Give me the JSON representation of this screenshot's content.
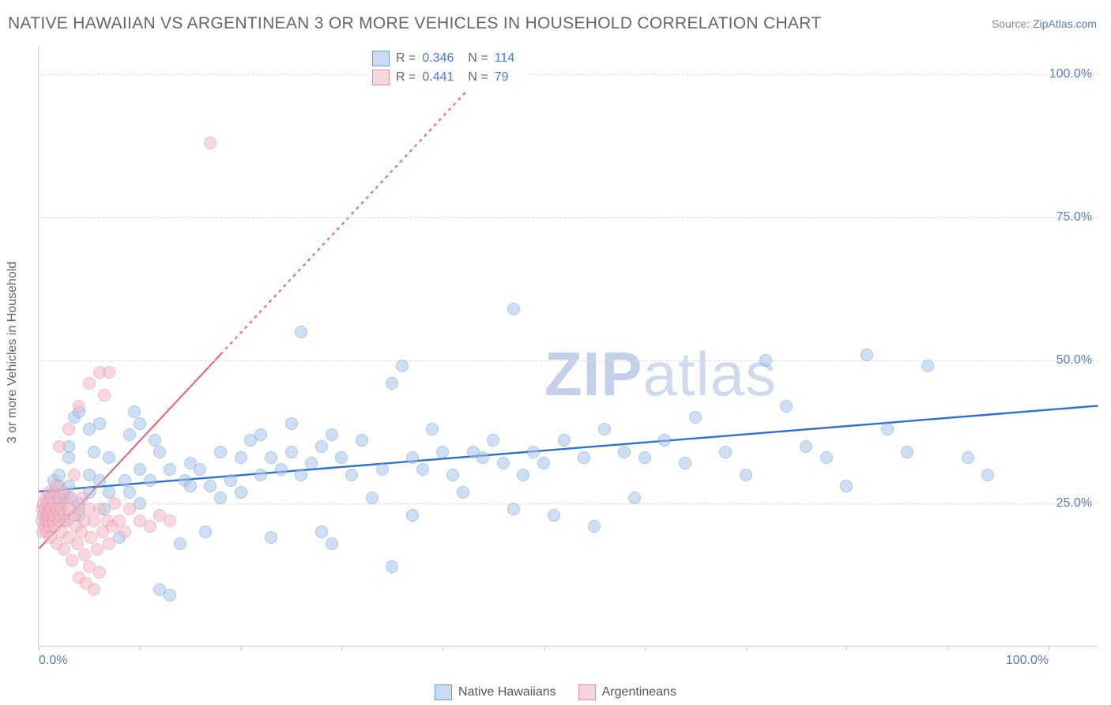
{
  "title": "NATIVE HAWAIIAN VS ARGENTINEAN 3 OR MORE VEHICLES IN HOUSEHOLD CORRELATION CHART",
  "source_label": "Source: ",
  "source_link": "ZipAtlas.com",
  "ylabel": "3 or more Vehicles in Household",
  "watermark_zip": "ZIP",
  "watermark_atlas": "atlas",
  "chart": {
    "type": "scatter",
    "xlim": [
      0,
      105
    ],
    "ylim": [
      0,
      105
    ],
    "y_gridlines": [
      25,
      50,
      75,
      100
    ],
    "y_tick_labels": [
      "25.0%",
      "50.0%",
      "75.0%",
      "100.0%"
    ],
    "x_ticks": [
      0,
      10,
      20,
      30,
      40,
      50,
      60,
      70,
      80,
      90,
      100
    ],
    "x_tick_labels_shown": {
      "0": "0.0%",
      "100": "100.0%"
    },
    "background_color": "#ffffff",
    "grid_color": "#dddddd",
    "axis_color": "#cccccc",
    "point_radius": 8,
    "point_border_width": 1.4,
    "series": [
      {
        "name": "Native Hawaiians",
        "color_fill": "#a9c5ea",
        "color_stroke": "#6b9bd8",
        "fill_opacity": 0.55,
        "R": "0.346",
        "N": "114",
        "trend": {
          "x1": 0,
          "y1": 27,
          "x2": 105,
          "y2": 42,
          "color": "#2f6fd0",
          "width": 2.4,
          "dash": "none"
        },
        "points": [
          [
            1,
            24
          ],
          [
            1,
            26
          ],
          [
            1.5,
            29
          ],
          [
            1.5,
            27
          ],
          [
            2,
            30
          ],
          [
            2,
            25
          ],
          [
            2,
            28
          ],
          [
            2.5,
            22
          ],
          [
            2.5,
            26
          ],
          [
            3,
            33
          ],
          [
            3,
            35
          ],
          [
            3,
            28
          ],
          [
            3,
            26
          ],
          [
            3.5,
            40
          ],
          [
            4,
            41
          ],
          [
            4,
            23
          ],
          [
            4,
            25
          ],
          [
            5,
            27
          ],
          [
            5,
            38
          ],
          [
            5,
            30
          ],
          [
            5.5,
            34
          ],
          [
            6,
            29
          ],
          [
            6,
            39
          ],
          [
            6.5,
            24
          ],
          [
            7,
            27
          ],
          [
            7,
            33
          ],
          [
            8,
            19
          ],
          [
            8.5,
            29
          ],
          [
            9,
            37
          ],
          [
            9,
            27
          ],
          [
            9.5,
            41
          ],
          [
            10,
            39
          ],
          [
            10,
            31
          ],
          [
            10,
            25
          ],
          [
            11,
            29
          ],
          [
            11.5,
            36
          ],
          [
            12,
            34
          ],
          [
            12,
            10
          ],
          [
            13,
            31
          ],
          [
            13,
            9
          ],
          [
            14,
            18
          ],
          [
            14.5,
            29
          ],
          [
            15,
            28
          ],
          [
            15,
            32
          ],
          [
            16,
            31
          ],
          [
            16.5,
            20
          ],
          [
            17,
            28
          ],
          [
            18,
            34
          ],
          [
            18,
            26
          ],
          [
            19,
            29
          ],
          [
            20,
            33
          ],
          [
            20,
            27
          ],
          [
            21,
            36
          ],
          [
            22,
            37
          ],
          [
            22,
            30
          ],
          [
            23,
            33
          ],
          [
            23,
            19
          ],
          [
            24,
            31
          ],
          [
            25,
            39
          ],
          [
            25,
            34
          ],
          [
            26,
            30
          ],
          [
            26,
            55
          ],
          [
            27,
            32
          ],
          [
            28,
            35
          ],
          [
            28,
            20
          ],
          [
            29,
            37
          ],
          [
            29,
            18
          ],
          [
            30,
            33
          ],
          [
            31,
            30
          ],
          [
            32,
            36
          ],
          [
            33,
            26
          ],
          [
            34,
            31
          ],
          [
            35,
            46
          ],
          [
            35,
            14
          ],
          [
            36,
            49
          ],
          [
            37,
            33
          ],
          [
            37,
            23
          ],
          [
            38,
            31
          ],
          [
            39,
            38
          ],
          [
            40,
            34
          ],
          [
            41,
            30
          ],
          [
            42,
            27
          ],
          [
            43,
            34
          ],
          [
            44,
            33
          ],
          [
            45,
            36
          ],
          [
            46,
            32
          ],
          [
            47,
            24
          ],
          [
            47,
            59
          ],
          [
            48,
            30
          ],
          [
            49,
            34
          ],
          [
            50,
            32
          ],
          [
            51,
            23
          ],
          [
            52,
            36
          ],
          [
            54,
            33
          ],
          [
            55,
            21
          ],
          [
            56,
            38
          ],
          [
            58,
            34
          ],
          [
            59,
            26
          ],
          [
            60,
            33
          ],
          [
            62,
            36
          ],
          [
            64,
            32
          ],
          [
            65,
            40
          ],
          [
            68,
            34
          ],
          [
            70,
            30
          ],
          [
            72,
            50
          ],
          [
            74,
            42
          ],
          [
            76,
            35
          ],
          [
            78,
            33
          ],
          [
            80,
            28
          ],
          [
            82,
            51
          ],
          [
            84,
            38
          ],
          [
            86,
            34
          ],
          [
            88,
            49
          ],
          [
            92,
            33
          ],
          [
            94,
            30
          ]
        ]
      },
      {
        "name": "Argentineans",
        "color_fill": "#f2b9c6",
        "color_stroke": "#e88ba3",
        "fill_opacity": 0.55,
        "R": "0.441",
        "N": "79",
        "trend": {
          "x1": 0,
          "y1": 17,
          "x2": 45,
          "y2": 102,
          "color": "#e16b8c",
          "width": 2.2,
          "dash": "4,5",
          "solid_until_x": 18
        },
        "points": [
          [
            0.3,
            22
          ],
          [
            0.3,
            24
          ],
          [
            0.4,
            20
          ],
          [
            0.5,
            23
          ],
          [
            0.5,
            25
          ],
          [
            0.6,
            21
          ],
          [
            0.6,
            24
          ],
          [
            0.7,
            22
          ],
          [
            0.7,
            26
          ],
          [
            0.8,
            23
          ],
          [
            0.8,
            20
          ],
          [
            0.9,
            25
          ],
          [
            1,
            23
          ],
          [
            1,
            22
          ],
          [
            1,
            21
          ],
          [
            1,
            27
          ],
          [
            1.2,
            24
          ],
          [
            1.2,
            19
          ],
          [
            1.3,
            26
          ],
          [
            1.4,
            22
          ],
          [
            1.5,
            25
          ],
          [
            1.5,
            23
          ],
          [
            1.6,
            21
          ],
          [
            1.7,
            28
          ],
          [
            1.8,
            24
          ],
          [
            1.8,
            18
          ],
          [
            2,
            23
          ],
          [
            2,
            26
          ],
          [
            2,
            22
          ],
          [
            2,
            35
          ],
          [
            2.2,
            24
          ],
          [
            2.3,
            20
          ],
          [
            2.4,
            27
          ],
          [
            2.5,
            23
          ],
          [
            2.5,
            17
          ],
          [
            2.7,
            25
          ],
          [
            2.8,
            22
          ],
          [
            3,
            24
          ],
          [
            3,
            38
          ],
          [
            3,
            19
          ],
          [
            3.2,
            26
          ],
          [
            3.3,
            15
          ],
          [
            3.5,
            23
          ],
          [
            3.5,
            30
          ],
          [
            3.7,
            21
          ],
          [
            3.8,
            18
          ],
          [
            4,
            24
          ],
          [
            4,
            12
          ],
          [
            4,
            42
          ],
          [
            4.2,
            20
          ],
          [
            4.3,
            26
          ],
          [
            4.5,
            22
          ],
          [
            4.5,
            16
          ],
          [
            4.7,
            11
          ],
          [
            5,
            24
          ],
          [
            5,
            14
          ],
          [
            5,
            46
          ],
          [
            5.2,
            19
          ],
          [
            5.5,
            22
          ],
          [
            5.5,
            10
          ],
          [
            5.8,
            17
          ],
          [
            6,
            24
          ],
          [
            6,
            48
          ],
          [
            6,
            13
          ],
          [
            6.3,
            20
          ],
          [
            6.5,
            44
          ],
          [
            6.8,
            22
          ],
          [
            7,
            18
          ],
          [
            7,
            48
          ],
          [
            7.3,
            21
          ],
          [
            7.5,
            25
          ],
          [
            8,
            22
          ],
          [
            8.5,
            20
          ],
          [
            9,
            24
          ],
          [
            10,
            22
          ],
          [
            11,
            21
          ],
          [
            12,
            23
          ],
          [
            13,
            22
          ],
          [
            17,
            88
          ]
        ]
      }
    ],
    "stats_legend_labels": {
      "R": "R",
      "N": "N",
      "eq": "="
    },
    "bottom_legend": [
      "Native Hawaiians",
      "Argentineans"
    ]
  }
}
